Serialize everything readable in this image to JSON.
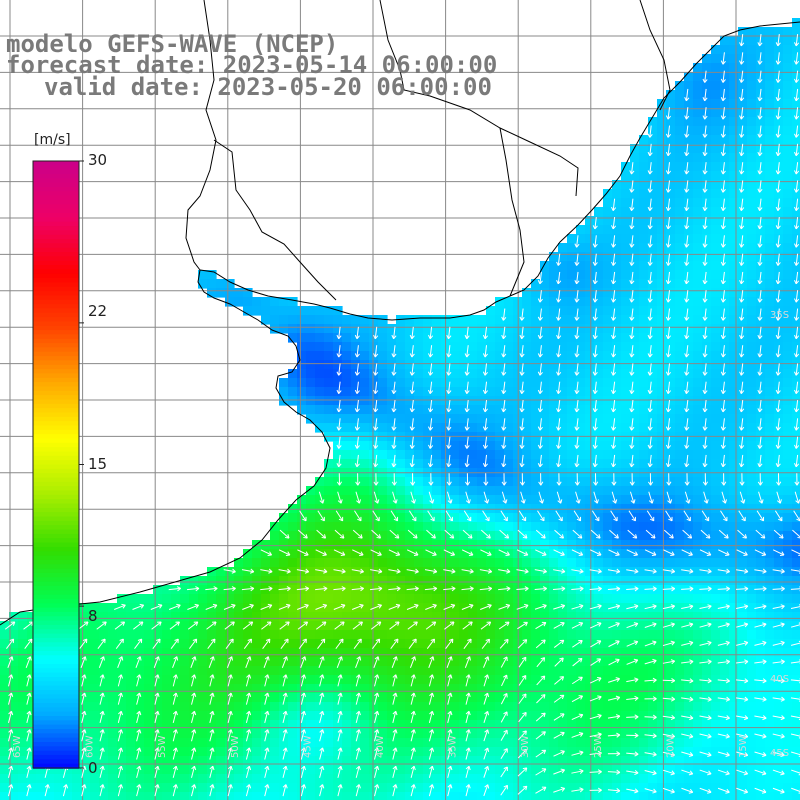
{
  "title": {
    "model": "modelo GEFS-WAVE (NCEP)",
    "forecast": "forecast date: 2023-05-14 06:00:00",
    "valid": "valid date: 2023-05-20 06:00:00"
  },
  "colorbar": {
    "unit": "[m/s]",
    "ticks": [
      "30",
      "22",
      "15",
      "8",
      "0"
    ],
    "tick_values": [
      30,
      22,
      15,
      8,
      0
    ],
    "range": [
      0,
      30
    ],
    "colors": [
      "#0000ff",
      "#00aaff",
      "#00ffff",
      "#00ff55",
      "#33dd00",
      "#aaee00",
      "#ffff00",
      "#ffaa00",
      "#ff4400",
      "#ff0000",
      "#ee0066",
      "#cc0088"
    ]
  },
  "map": {
    "variable": "wind speed",
    "units": "m/s",
    "land_color": "#ffffff",
    "grid_color": "#888888",
    "vector_color": "#ffffff",
    "coastline_color": "#000000",
    "lat_labels": [
      "35S",
      "40S",
      "45S"
    ],
    "lon_labels": [
      "65W",
      "60W",
      "55W",
      "50W",
      "45W",
      "40W",
      "35W",
      "30W",
      "25W",
      "20W",
      "15W",
      "10W"
    ]
  }
}
